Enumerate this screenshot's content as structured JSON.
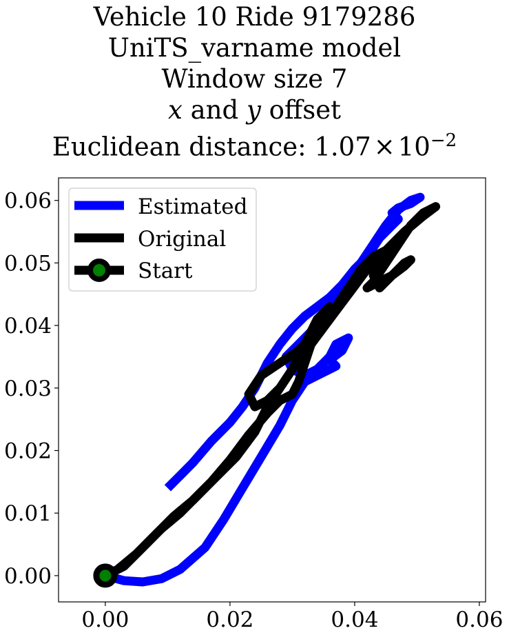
{
  "chart_data": {
    "type": "line",
    "title_lines": [
      "Vehicle 10 Ride 9179286",
      "UniTS_varname model",
      "Window size 7"
    ],
    "title_offset_line": {
      "var_x": "x",
      "and_word": " and ",
      "var_y": "y",
      "suffix": " offset"
    },
    "title_metric_line": {
      "prefix": "Euclidean distance: 1.07",
      "times": "×",
      "base": "10",
      "exponent": "−2"
    },
    "xlabel": "",
    "ylabel": "",
    "xlim": [
      -0.0075,
      0.061
    ],
    "ylim": [
      -0.0042,
      0.0636
    ],
    "x_ticks": [
      {
        "value": 0.0,
        "label": "0.00"
      },
      {
        "value": 0.02,
        "label": "0.02"
      },
      {
        "value": 0.04,
        "label": "0.04"
      },
      {
        "value": 0.06,
        "label": "0.06"
      }
    ],
    "y_ticks": [
      {
        "value": 0.0,
        "label": "0.00"
      },
      {
        "value": 0.01,
        "label": "0.01"
      },
      {
        "value": 0.02,
        "label": "0.02"
      },
      {
        "value": 0.03,
        "label": "0.03"
      },
      {
        "value": 0.04,
        "label": "0.04"
      },
      {
        "value": 0.05,
        "label": "0.05"
      },
      {
        "value": 0.06,
        "label": "0.06"
      }
    ],
    "grid": false,
    "legend_position": "top-left",
    "series": [
      {
        "name": "Estimated",
        "color": "#0000ff",
        "points": [
          [
            0.0,
            0.0
          ],
          [
            0.003,
            -0.0008
          ],
          [
            0.006,
            -0.001
          ],
          [
            0.009,
            -0.0005
          ],
          [
            0.012,
            0.001
          ],
          [
            0.016,
            0.0045
          ],
          [
            0.019,
            0.009
          ],
          [
            0.022,
            0.014
          ],
          [
            0.025,
            0.019
          ],
          [
            0.028,
            0.024
          ],
          [
            0.03,
            0.028
          ],
          [
            0.032,
            0.031
          ],
          [
            0.034,
            0.032
          ],
          [
            0.036,
            0.033
          ],
          [
            0.037,
            0.0335
          ],
          [
            0.036,
            0.0345
          ],
          [
            0.038,
            0.036
          ],
          [
            0.039,
            0.038
          ],
          [
            0.037,
            0.037
          ],
          [
            0.036,
            0.035
          ],
          [
            0.034,
            0.033
          ],
          [
            0.032,
            0.032
          ],
          [
            0.03,
            0.033
          ],
          [
            0.029,
            0.035
          ],
          [
            0.031,
            0.037
          ],
          [
            0.033,
            0.039
          ],
          [
            0.035,
            0.041
          ],
          [
            0.037,
            0.044
          ],
          [
            0.039,
            0.047
          ],
          [
            0.041,
            0.05
          ],
          [
            0.043,
            0.053
          ],
          [
            0.045,
            0.056
          ],
          [
            0.047,
            0.0585
          ],
          [
            0.049,
            0.06
          ],
          [
            0.0505,
            0.0605
          ],
          [
            0.049,
            0.0595
          ],
          [
            0.047,
            0.0588
          ],
          [
            0.046,
            0.058
          ],
          [
            0.047,
            0.057
          ],
          [
            0.046,
            0.056
          ],
          [
            0.044,
            0.054
          ],
          [
            0.042,
            0.051
          ],
          [
            0.04,
            0.049
          ],
          [
            0.038,
            0.0465
          ],
          [
            0.036,
            0.0445
          ],
          [
            0.034,
            0.043
          ],
          [
            0.032,
            0.0415
          ],
          [
            0.03,
            0.0395
          ],
          [
            0.028,
            0.037
          ],
          [
            0.026,
            0.034
          ],
          [
            0.024,
            0.03
          ],
          [
            0.022,
            0.027
          ],
          [
            0.02,
            0.0245
          ],
          [
            0.017,
            0.0215
          ],
          [
            0.014,
            0.018
          ],
          [
            0.012,
            0.016
          ],
          [
            0.01,
            0.014
          ]
        ]
      },
      {
        "name": "Original",
        "color": "#000000",
        "points": [
          [
            0.0,
            0.0
          ],
          [
            0.002,
            0.001
          ],
          [
            0.005,
            0.0035
          ],
          [
            0.008,
            0.0065
          ],
          [
            0.011,
            0.0095
          ],
          [
            0.014,
            0.012
          ],
          [
            0.017,
            0.015
          ],
          [
            0.02,
            0.0185
          ],
          [
            0.023,
            0.0225
          ],
          [
            0.026,
            0.026
          ],
          [
            0.028,
            0.028
          ],
          [
            0.03,
            0.029
          ],
          [
            0.031,
            0.031
          ],
          [
            0.032,
            0.034
          ],
          [
            0.033,
            0.037
          ],
          [
            0.034,
            0.0395
          ],
          [
            0.035,
            0.042
          ],
          [
            0.036,
            0.043
          ],
          [
            0.034,
            0.041
          ],
          [
            0.032,
            0.037
          ],
          [
            0.03,
            0.033
          ],
          [
            0.028,
            0.03
          ],
          [
            0.026,
            0.028
          ],
          [
            0.024,
            0.027
          ],
          [
            0.023,
            0.029
          ],
          [
            0.025,
            0.032
          ],
          [
            0.028,
            0.034
          ],
          [
            0.031,
            0.036
          ],
          [
            0.033,
            0.038
          ],
          [
            0.035,
            0.04
          ],
          [
            0.037,
            0.043
          ],
          [
            0.039,
            0.046
          ],
          [
            0.041,
            0.049
          ],
          [
            0.043,
            0.051
          ],
          [
            0.045,
            0.052
          ],
          [
            0.044,
            0.0505
          ],
          [
            0.043,
            0.048
          ],
          [
            0.044,
            0.046
          ],
          [
            0.046,
            0.048
          ],
          [
            0.048,
            0.05
          ],
          [
            0.049,
            0.0505
          ],
          [
            0.048,
            0.0495
          ],
          [
            0.046,
            0.048
          ],
          [
            0.044,
            0.047
          ],
          [
            0.042,
            0.046
          ],
          [
            0.043,
            0.047
          ],
          [
            0.045,
            0.05
          ],
          [
            0.047,
            0.053
          ],
          [
            0.049,
            0.056
          ],
          [
            0.051,
            0.058
          ],
          [
            0.053,
            0.059
          ],
          [
            0.051,
            0.0575
          ],
          [
            0.048,
            0.055
          ],
          [
            0.045,
            0.052
          ],
          [
            0.042,
            0.049
          ],
          [
            0.039,
            0.045
          ],
          [
            0.036,
            0.041
          ],
          [
            0.033,
            0.037
          ],
          [
            0.03,
            0.033
          ],
          [
            0.028,
            0.03
          ],
          [
            0.026,
            0.027
          ],
          [
            0.024,
            0.023
          ],
          [
            0.021,
            0.019
          ],
          [
            0.018,
            0.016
          ],
          [
            0.015,
            0.013
          ],
          [
            0.012,
            0.01
          ],
          [
            0.009,
            0.0075
          ],
          [
            0.006,
            0.0045
          ],
          [
            0.003,
            0.0015
          ],
          [
            0.0,
            0.0
          ]
        ]
      }
    ],
    "start_point": {
      "name": "Start",
      "x": 0.0,
      "y": 0.0,
      "marker_color": "#008000",
      "edge_color": "#000000"
    }
  }
}
